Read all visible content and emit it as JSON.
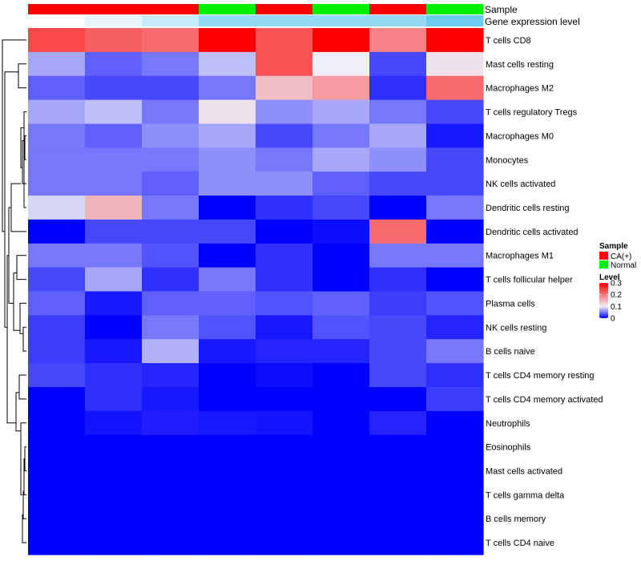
{
  "chart_data": {
    "type": "heatmap",
    "annotation_labels": [
      "Sample",
      "Gene expression level"
    ],
    "columns": [
      {
        "sample": "CA(+)",
        "expression": 0.0
      },
      {
        "sample": "CA(+)",
        "expression": 0.05
      },
      {
        "sample": "CA(+)",
        "expression": 0.12
      },
      {
        "sample": "Normal",
        "expression": 0.22
      },
      {
        "sample": "CA(+)",
        "expression": 0.22
      },
      {
        "sample": "Normal",
        "expression": 0.22
      },
      {
        "sample": "CA(+)",
        "expression": 0.22
      },
      {
        "sample": "Normal",
        "expression": 0.3
      }
    ],
    "rows": [
      {
        "label": "T cells CD8",
        "values": [
          0.24,
          0.22,
          0.21,
          0.3,
          0.23,
          0.3,
          0.19,
          0.3
        ]
      },
      {
        "label": "Mast cells resting",
        "values": [
          0.07,
          0.04,
          0.05,
          0.08,
          0.23,
          0.1,
          0.03,
          0.11
        ]
      },
      {
        "label": "Macrophages M2",
        "values": [
          0.04,
          0.03,
          0.03,
          0.05,
          0.14,
          0.17,
          0.02,
          0.21
        ]
      },
      {
        "label": "T cells regulatory  Tregs",
        "values": [
          0.07,
          0.08,
          0.05,
          0.11,
          0.06,
          0.07,
          0.05,
          0.03
        ]
      },
      {
        "label": "Macrophages M0",
        "values": [
          0.05,
          0.04,
          0.06,
          0.07,
          0.03,
          0.05,
          0.07,
          0.01
        ]
      },
      {
        "label": "Monocytes",
        "values": [
          0.05,
          0.05,
          0.05,
          0.06,
          0.05,
          0.07,
          0.06,
          0.03
        ]
      },
      {
        "label": "NK cells activated",
        "values": [
          0.05,
          0.05,
          0.04,
          0.06,
          0.06,
          0.04,
          0.03,
          0.03
        ]
      },
      {
        "label": "Dendritic cells resting",
        "values": [
          0.09,
          0.15,
          0.05,
          0.0,
          0.02,
          0.03,
          0.0,
          0.05
        ]
      },
      {
        "label": "Dendritic cells activated",
        "values": [
          0.0,
          0.03,
          0.03,
          0.03,
          0.0,
          0.005,
          0.21,
          0.0
        ]
      },
      {
        "label": "Macrophages M1",
        "values": [
          0.05,
          0.05,
          0.035,
          0.0,
          0.02,
          0.0,
          0.05,
          0.05
        ]
      },
      {
        "label": "T cells follicular helper",
        "values": [
          0.03,
          0.07,
          0.02,
          0.05,
          0.02,
          0.0,
          0.02,
          0.0
        ]
      },
      {
        "label": "Plasma cells",
        "values": [
          0.04,
          0.01,
          0.04,
          0.04,
          0.035,
          0.04,
          0.025,
          0.035
        ]
      },
      {
        "label": "NK cells resting",
        "values": [
          0.025,
          0.0,
          0.05,
          0.035,
          0.01,
          0.035,
          0.03,
          0.015
        ]
      },
      {
        "label": "B cells naive",
        "values": [
          0.025,
          0.01,
          0.075,
          0.01,
          0.015,
          0.015,
          0.03,
          0.05
        ]
      },
      {
        "label": "T cells CD4 memory resting",
        "values": [
          0.03,
          0.02,
          0.015,
          0.0,
          0.005,
          0.0,
          0.03,
          0.02
        ]
      },
      {
        "label": "T cells CD4 memory activated",
        "values": [
          0.0,
          0.02,
          0.01,
          0.0,
          0.0,
          0.0,
          0.0,
          0.025
        ]
      },
      {
        "label": "Neutrophils",
        "values": [
          0.0,
          0.008,
          0.012,
          0.01,
          0.008,
          0.0,
          0.015,
          0.0
        ]
      },
      {
        "label": "Eosinophils",
        "values": [
          0,
          0,
          0,
          0,
          0,
          0,
          0,
          0
        ]
      },
      {
        "label": "Mast cells activated",
        "values": [
          0,
          0,
          0,
          0,
          0,
          0,
          0,
          0
        ]
      },
      {
        "label": "T cells gamma delta",
        "values": [
          0,
          0,
          0,
          0,
          0,
          0,
          0,
          0
        ]
      },
      {
        "label": "B cells memory",
        "values": [
          0,
          0,
          0,
          0,
          0,
          0,
          0,
          0
        ]
      },
      {
        "label": "T cells CD4 naive",
        "values": [
          0,
          0,
          0,
          0,
          0,
          0,
          0,
          0
        ]
      }
    ],
    "color_scale": {
      "low": "#0000FF",
      "mid": "#EEEEF6",
      "high": "#FF0000",
      "domain": [
        0,
        0.3
      ],
      "mid_value": 0.1
    },
    "expression_scale": {
      "low": "#FFFFFF",
      "high": "#6DCBF1",
      "domain": [
        0,
        0.3
      ]
    },
    "legend": {
      "sample_title": "Sample",
      "sample_entries": [
        {
          "label": "CA(+)",
          "color": "#FF0000"
        },
        {
          "label": "Normal",
          "color": "#00EE00"
        }
      ],
      "level_title": "Level",
      "level_ticks": [
        {
          "value": 0.3,
          "label": "0.3"
        },
        {
          "value": 0.2,
          "label": "0.2"
        },
        {
          "value": 0.1,
          "label": "0.1"
        },
        {
          "value": 0,
          "label": "0"
        }
      ],
      "position": "right"
    },
    "row_dendrogram": true
  }
}
